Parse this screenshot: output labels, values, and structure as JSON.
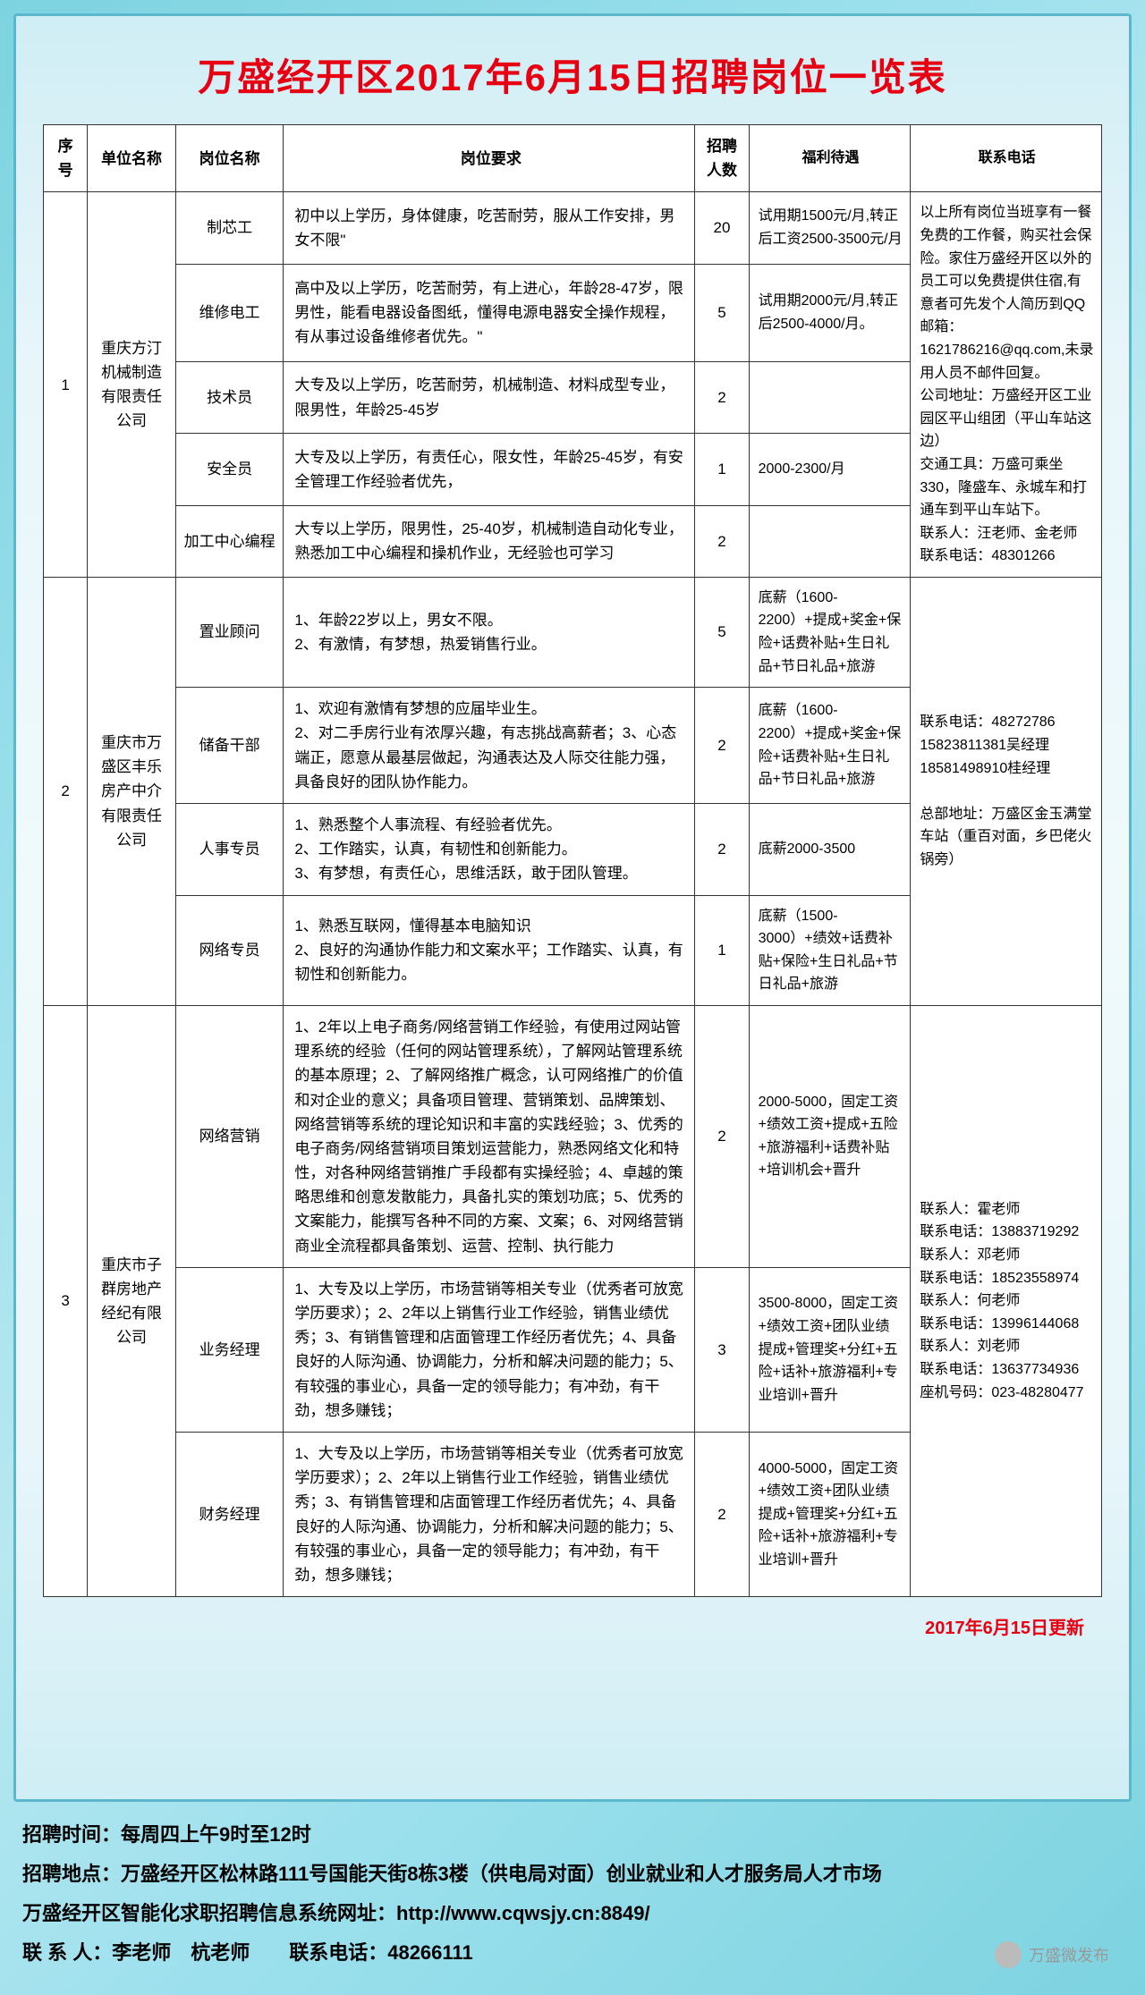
{
  "title": "万盛经开区2017年6月15日招聘岗位一览表",
  "headers": {
    "seq": "序号",
    "company": "单位名称",
    "position": "岗位名称",
    "requirement": "岗位要求",
    "count": "招聘人数",
    "benefit": "福利待遇",
    "contact": "联系电话"
  },
  "companies": [
    {
      "seq": "1",
      "name": "重庆方汀机械制造有限责任公司",
      "contact": "以上所有岗位当班享有一餐免费的工作餐，购买社会保险。家住万盛经开区以外的员工可以免费提供住宿,有意者可先发个人简历到QQ邮箱：1621786216@qq.com,未录用人员不邮件回复。\n公司地址：万盛经开区工业园区平山组团（平山车站这边）\n交通工具：万盛可乘坐330，隆盛车、永城车和打通车到平山车站下。\n联系人：汪老师、金老师　联系电话：48301266",
      "positions": [
        {
          "name": "制芯工",
          "req": "初中以上学历，身体健康，吃苦耐劳，服从工作安排，男女不限\"",
          "count": "20",
          "benefit": "试用期1500元/月,转正后工资2500-3500元/月"
        },
        {
          "name": "维修电工",
          "req": "高中及以上学历，吃苦耐劳，有上进心，年龄28-47岁，限男性，能看电器设备图纸，懂得电源电器安全操作规程，有从事过设备维修者优先。\"",
          "count": "5",
          "benefit": "试用期2000元/月,转正后2500-4000/月。"
        },
        {
          "name": "技术员",
          "req": "大专及以上学历，吃苦耐劳，机械制造、材料成型专业，限男性，年龄25-45岁",
          "count": "2",
          "benefit": ""
        },
        {
          "name": "安全员",
          "req": "大专及以上学历，有责任心，限女性，年龄25-45岁，有安全管理工作经验者优先，",
          "count": "1",
          "benefit": "2000-2300/月"
        },
        {
          "name": "加工中心编程",
          "req": "大专以上学历，限男性，25-40岁，机械制造自动化专业，熟悉加工中心编程和操机作业，无经验也可学习",
          "count": "2",
          "benefit": ""
        }
      ]
    },
    {
      "seq": "2",
      "name": "重庆市万盛区丰乐房产中介有限责任公司",
      "contact": "联系电话：48272786\n15823811381吴经理\n18581498910桂经理\n\n总部地址：万盛区金玉满堂车站（重百对面，乡巴佬火锅旁）",
      "positions": [
        {
          "name": "置业顾问",
          "req": "1、年龄22岁以上，男女不限。\n2、有激情，有梦想，热爱销售行业。",
          "count": "5",
          "benefit": "底薪（1600-2200）+提成+奖金+保险+话费补贴+生日礼品+节日礼品+旅游"
        },
        {
          "name": "储备干部",
          "req": "1、欢迎有激情有梦想的应届毕业生。\n2、对二手房行业有浓厚兴趣，有志挑战高薪者；3、心态端正，愿意从最基层做起，沟通表达及人际交往能力强，具备良好的团队协作能力。",
          "count": "2",
          "benefit": "底薪（1600-2200）+提成+奖金+保险+话费补贴+生日礼品+节日礼品+旅游"
        },
        {
          "name": "人事专员",
          "req": "1、熟悉整个人事流程、有经验者优先。\n2、工作踏实，认真，有韧性和创新能力。\n3、有梦想，有责任心，思维活跃，敢于团队管理。",
          "count": "2",
          "benefit": "底薪2000-3500"
        },
        {
          "name": "网络专员",
          "req": "1、熟悉互联网，懂得基本电脑知识\n2、良好的沟通协作能力和文案水平；工作踏实、认真，有韧性和创新能力。",
          "count": "1",
          "benefit": "底薪（1500-3000）+绩效+话费补贴+保险+生日礼品+节日礼品+旅游"
        }
      ]
    },
    {
      "seq": "3",
      "name": "重庆市子群房地产经纪有限公司",
      "contact": "联系人：霍老师\n联系电话：13883719292\n联系人：邓老师\n联系电话：18523558974\n联系人：何老师\n联系电话：13996144068\n联系人：刘老师\n联系电话：13637734936\n座机号码：023-48280477",
      "positions": [
        {
          "name": "网络营销",
          "req": "1、2年以上电子商务/网络营销工作经验，有使用过网站管理系统的经验（任何的网站管理系统），了解网站管理系统的基本原理；2、了解网络推广概念，认可网络推广的价值和对企业的意义；具备项目管理、营销策划、品牌策划、网络营销等系统的理论知识和丰富的实践经验；3、优秀的电子商务/网络营销项目策划运营能力，熟悉网络文化和特性，对各种网络营销推广手段都有实操经验；4、卓越的策略思维和创意发散能力，具备扎实的策划功底；5、优秀的文案能力，能撰写各种不同的方案、文案；6、对网络营销商业全流程都具备策划、运营、控制、执行能力",
          "count": "2",
          "benefit": "2000-5000，固定工资+绩效工资+提成+五险+旅游福利+话费补贴+培训机会+晋升"
        },
        {
          "name": "业务经理",
          "req": "1、大专及以上学历，市场营销等相关专业（优秀者可放宽学历要求）；2、2年以上销售行业工作经验，销售业绩优秀；3、有销售管理和店面管理工作经历者优先；4、具备良好的人际沟通、协调能力，分析和解决问题的能力；5、有较强的事业心，具备一定的领导能力；有冲劲，有干劲，想多赚钱；",
          "count": "3",
          "benefit": "3500-8000，固定工资+绩效工资+团队业绩提成+管理奖+分红+五险+话补+旅游福利+专业培训+晋升"
        },
        {
          "name": "财务经理",
          "req": "1、大专及以上学历，市场营销等相关专业（优秀者可放宽学历要求）；2、2年以上销售行业工作经验，销售业绩优秀；3、有销售管理和店面管理工作经历者优先；4、具备良好的人际沟通、协调能力，分析和解决问题的能力；5、有较强的事业心，具备一定的领导能力；有冲劲，有干劲，想多赚钱；",
          "count": "2",
          "benefit": "4000-5000，固定工资+绩效工资+团队业绩提成+管理奖+分红+五险+话补+旅游福利+专业培训+晋升"
        }
      ]
    }
  ],
  "update_note": "2017年6月15日更新",
  "footer": {
    "line1": "招聘时间：每周四上午9时至12时",
    "line2": "招聘地点：万盛经开区松林路111号国能天街8栋3楼（供电局对面）创业就业和人才服务局人才市场",
    "line3": "万盛经开区智能化求职招聘信息系统网址：http://www.cqwsjy.cn:8849/",
    "line4": "联 系 人：李老师　杭老师　　联系电话：48266111"
  },
  "watermark": "万盛微发布"
}
